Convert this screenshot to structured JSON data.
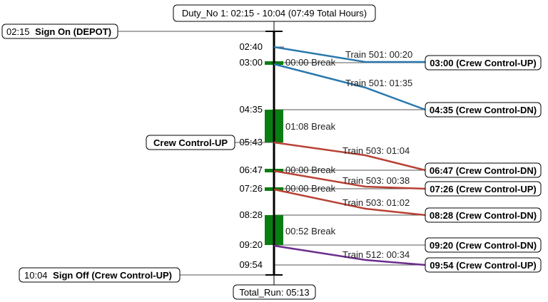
{
  "header": {
    "title": "Duty_No 1: 02:15 - 10:04 (07:49 Total Hours)"
  },
  "footer": {
    "total_run": "Total_Run: 05:13"
  },
  "sign_on": {
    "time": "02:15",
    "label": "Sign On (DEPOT)"
  },
  "sign_off": {
    "time": "10:04",
    "label": "Sign Off (Crew Control-UP)"
  },
  "left_location": {
    "label": "Crew Control-UP"
  },
  "colors": {
    "timeline": "#000000",
    "break_fill": "#0a7d12",
    "train_501": "#2a78ad",
    "train_503": "#b84235",
    "train_512": "#6b2d8c",
    "guide_line": "#555555"
  },
  "time_ticks": [
    "02:40",
    "03:00",
    "04:35",
    "05:43",
    "06:47",
    "07:26",
    "08:28",
    "09:20",
    "09:54"
  ],
  "breaks": [
    {
      "label": "00:00 Break"
    },
    {
      "label": "01:08 Break"
    },
    {
      "label": "00:00 Break"
    },
    {
      "label": "00:00 Break"
    },
    {
      "label": "00:52 Break"
    }
  ],
  "trips": [
    {
      "train": "Train 501: 00:20",
      "end": "03:00 (Crew Control-UP)"
    },
    {
      "train": "Train 501: 01:35",
      "end": "04:35 (Crew Control-DN)"
    },
    {
      "train": "Train 503: 01:04",
      "end": "06:47 (Crew Control-DN)"
    },
    {
      "train": "Train 503: 00:38",
      "end": "07:26 (Crew Control-UP)"
    },
    {
      "train": "Train 503: 01:02",
      "end": "08:28 (Crew Control-DN)"
    },
    {
      "train": "Train 512: 00:34",
      "end": "09:54 (Crew Control-UP)"
    }
  ],
  "standalone_boxes": [
    {
      "label": "09:20 (Crew Control-DN)"
    }
  ]
}
